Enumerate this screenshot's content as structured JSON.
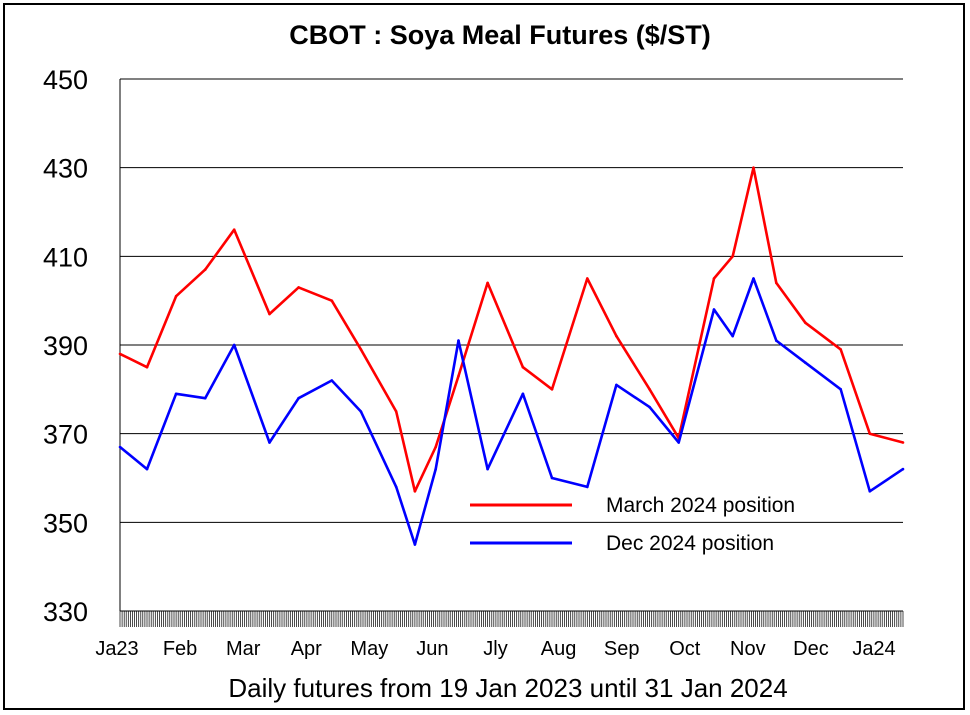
{
  "chart_data": {
    "type": "line",
    "title": "CBOT : Soya Meal Futures ($/ST)",
    "xlabel": "Daily futures from 19 Jan 2023 until 31 Jan 2024",
    "ylabel": "",
    "ylim": [
      330,
      450
    ],
    "yticks": [
      330,
      350,
      370,
      390,
      410,
      430,
      450
    ],
    "grid": "horizontal",
    "legend_position": "center-right",
    "month_labels": [
      "Ja23",
      "Feb",
      "Mar",
      "Apr",
      "May",
      "Jun",
      "Jly",
      "Aug",
      "Sep",
      "Oct",
      "Nov",
      "Dec",
      "Ja24"
    ],
    "x": [
      "2023-01-19",
      "2023-02-01",
      "2023-02-15",
      "2023-03-01",
      "2023-03-15",
      "2023-04-01",
      "2023-04-15",
      "2023-05-01",
      "2023-05-15",
      "2023-06-01",
      "2023-06-10",
      "2023-06-20",
      "2023-07-01",
      "2023-07-15",
      "2023-08-01",
      "2023-08-15",
      "2023-09-01",
      "2023-09-15",
      "2023-10-01",
      "2023-10-15",
      "2023-11-01",
      "2023-11-10",
      "2023-11-20",
      "2023-12-01",
      "2023-12-15",
      "2024-01-01",
      "2024-01-15",
      "2024-01-31"
    ],
    "series": [
      {
        "name": "March 2024 position",
        "color": "#ff0000",
        "values": [
          388,
          385,
          401,
          407,
          416,
          397,
          403,
          400,
          389,
          375,
          357,
          367,
          383,
          404,
          385,
          380,
          405,
          392,
          380,
          369,
          405,
          410,
          430,
          404,
          395,
          389,
          370,
          368
        ]
      },
      {
        "name": "Dec 2024 position",
        "color": "#0000ff",
        "values": [
          367,
          362,
          379,
          378,
          390,
          368,
          378,
          382,
          375,
          358,
          345,
          362,
          391,
          362,
          379,
          360,
          358,
          381,
          376,
          368,
          398,
          392,
          405,
          391,
          386,
          380,
          357,
          362
        ]
      }
    ]
  }
}
